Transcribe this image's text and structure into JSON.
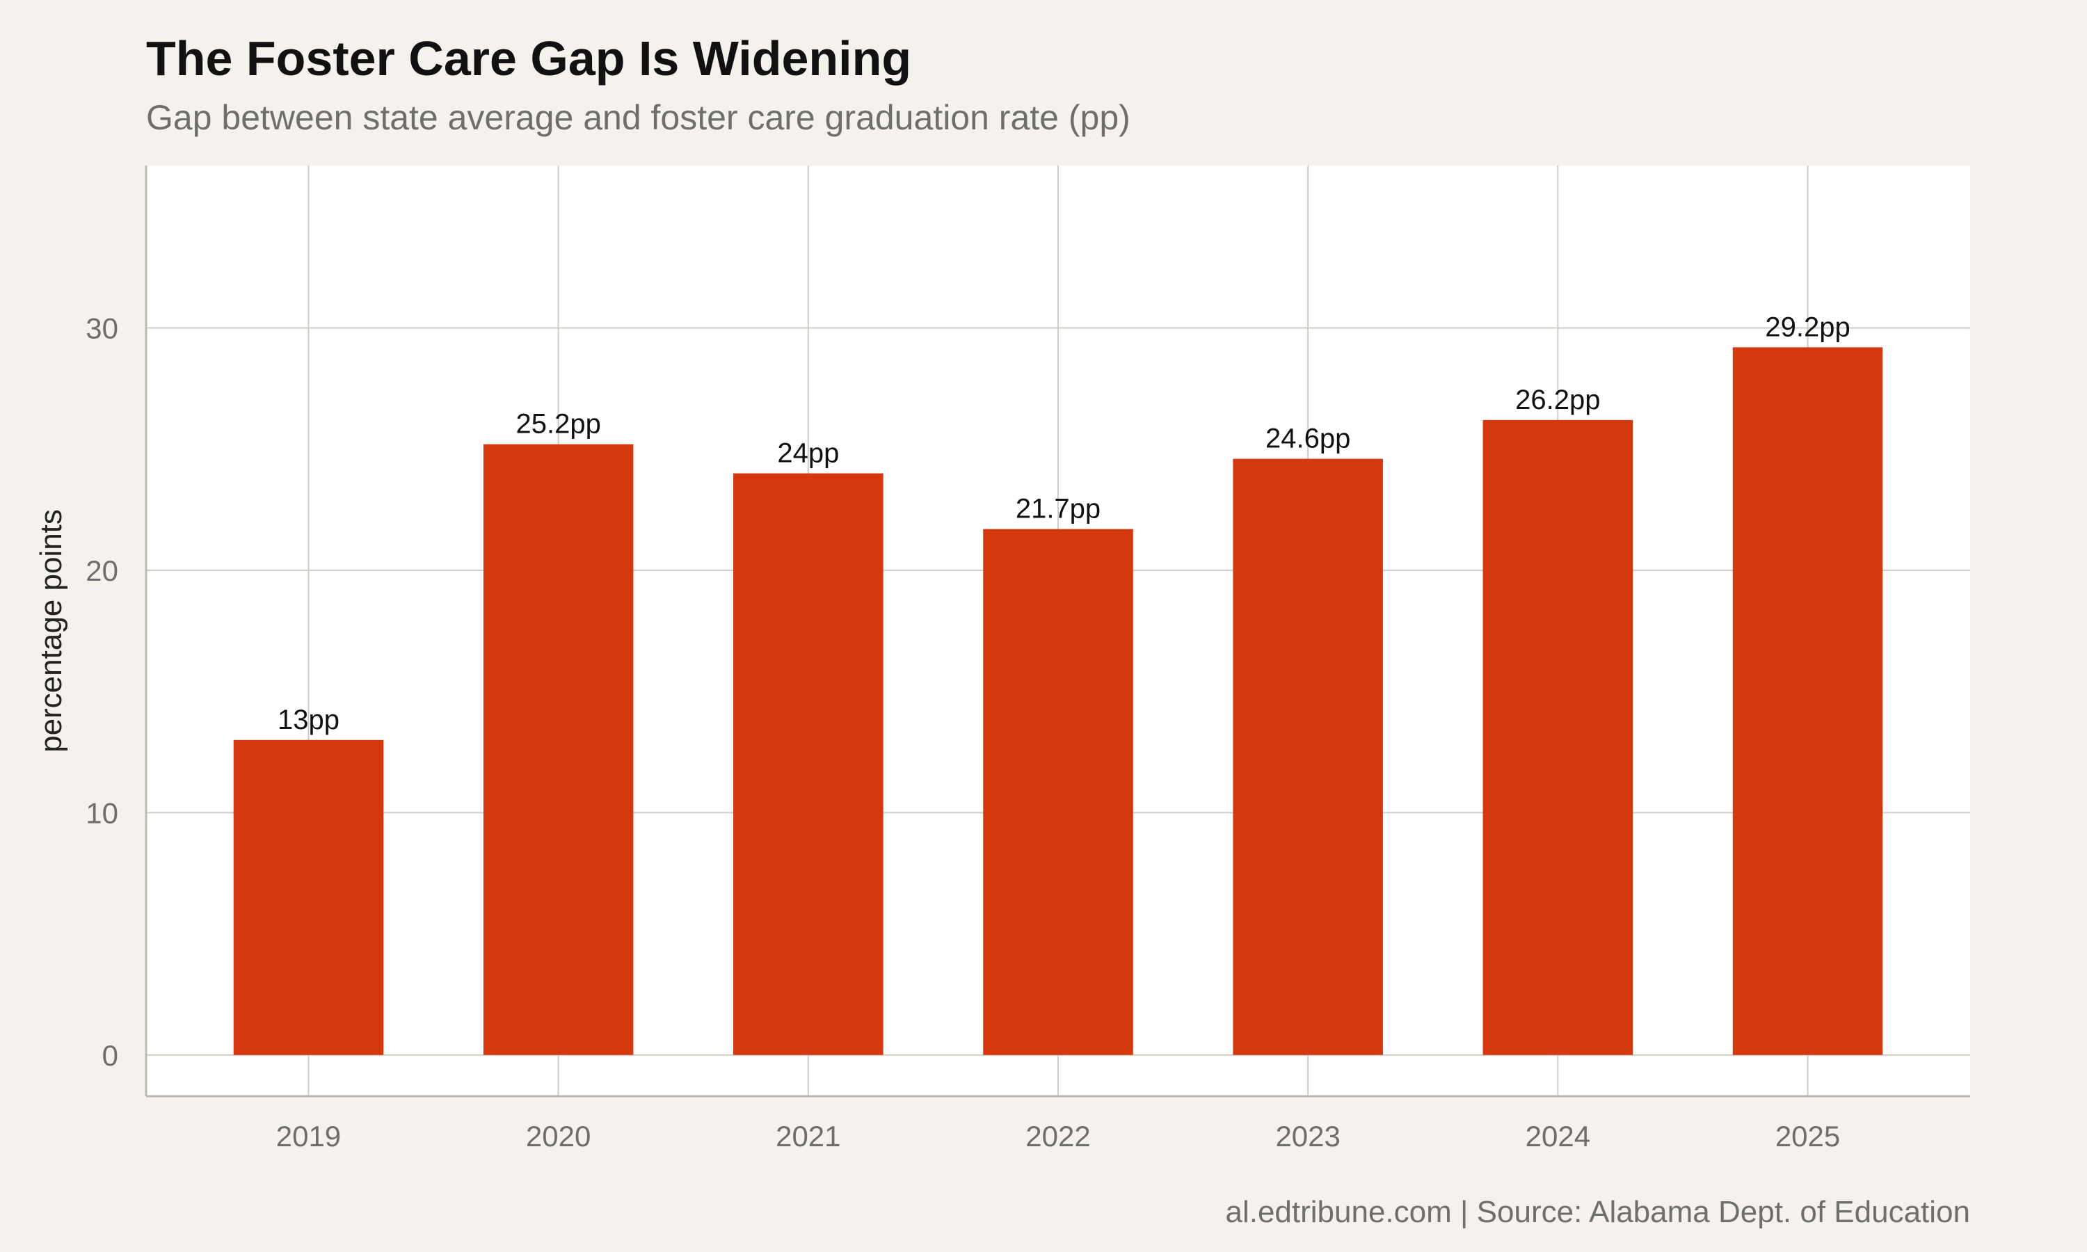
{
  "chart_data": {
    "type": "bar",
    "title": "The Foster Care Gap Is Widening",
    "subtitle": "Gap between state average and foster care graduation rate (pp)",
    "caption": "al.edtribune.com | Source: Alabama Dept. of Education",
    "xlabel": "",
    "ylabel": "percentage points",
    "categories": [
      "2019",
      "2020",
      "2021",
      "2022",
      "2023",
      "2024",
      "2025"
    ],
    "values": [
      13,
      25.2,
      24,
      21.7,
      24.6,
      26.2,
      29.2
    ],
    "data_labels": [
      "13pp",
      "25.2pp",
      "24pp",
      "21.7pp",
      "24.6pp",
      "26.2pp",
      "29.2pp"
    ],
    "yticks": [
      0,
      10,
      20,
      30
    ],
    "ylim": [
      -1.7,
      36.7
    ],
    "grid": true,
    "legend": "none",
    "colors": {
      "bar": "#d4380d",
      "panel": "#ffffff",
      "background": "#f5f2ed",
      "grid": "#cfccc4"
    }
  }
}
